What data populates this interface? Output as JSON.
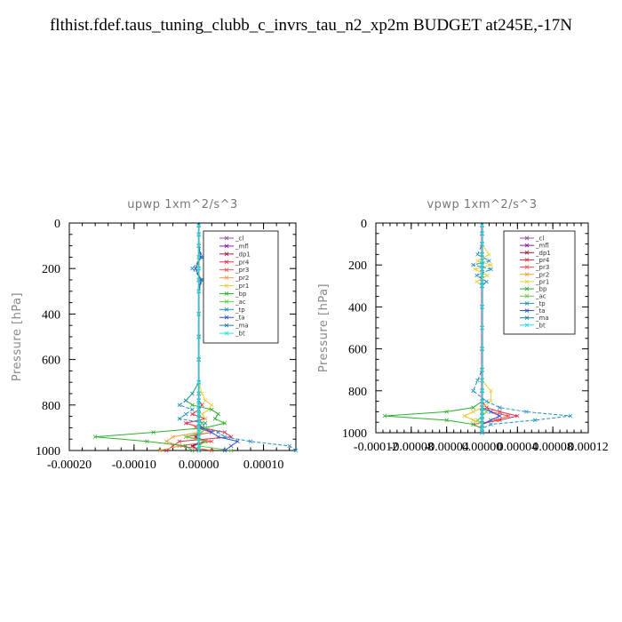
{
  "title": "flthist.fdef.taus_tuning_clubb_c_invrs_tau_n2_xp2m  BUDGET at245E,-17N",
  "legend_entries": [
    "_cl",
    "_mfl",
    "_dp1",
    "_pr4",
    "_pr3",
    "_pr2",
    "_pr1",
    "_bp",
    "_ac",
    "_tp",
    "_ta",
    "_ma",
    "_bt"
  ],
  "series_colors": [
    "#8a5a9e",
    "#7a1fa8",
    "#9c1b4a",
    "#e0304a",
    "#f05050",
    "#f0a040",
    "#e8d040",
    "#30b030",
    "#60d040",
    "#2090c0",
    "#3050d0",
    "#2080a0",
    "#20e0e0"
  ],
  "chart_data": [
    {
      "type": "line",
      "title": "upwp   1xm^2/s^3",
      "ylabel": "Pressure [hPa]",
      "xlim": [
        -0.0002,
        0.00015
      ],
      "ylim": [
        1000,
        0
      ],
      "x_ticks": [
        -0.0002,
        -0.0001,
        0.0,
        0.0001
      ],
      "x_tick_labels": [
        "-0.00020",
        "-0.00010",
        "0.00000",
        "0.00010"
      ],
      "y_ticks": [
        0,
        200,
        400,
        600,
        800,
        1000
      ],
      "y_tick_labels": [
        "0",
        "200",
        "400",
        "600",
        "800",
        "1000"
      ],
      "pressure": [
        10,
        50,
        100,
        150,
        200,
        250,
        300,
        400,
        500,
        600,
        700,
        750,
        780,
        800,
        820,
        840,
        860,
        880,
        900,
        920,
        940,
        960,
        980,
        1000
      ],
      "series": [
        {
          "name": "_cl",
          "values": [
            0,
            0,
            0,
            0,
            0,
            0,
            0,
            0,
            0,
            0,
            0,
            0,
            0,
            0,
            0,
            0,
            0,
            0,
            0,
            0,
            0,
            0,
            0,
            0
          ]
        },
        {
          "name": "_mfl",
          "values": [
            0,
            0,
            0,
            0,
            0,
            0,
            0,
            0,
            0,
            0,
            0,
            0,
            0,
            0,
            0,
            0,
            0,
            0,
            0,
            0,
            0,
            0,
            0,
            0
          ]
        },
        {
          "name": "_dp1",
          "values": [
            0,
            0,
            0,
            0,
            0,
            0,
            0,
            0,
            0,
            0,
            0,
            0,
            0,
            0,
            0,
            0,
            0,
            0,
            0,
            0,
            -5e-06,
            1e-05,
            -1e-05,
            0
          ]
        },
        {
          "name": "_pr4",
          "values": [
            0,
            0,
            0,
            0,
            0,
            0,
            0,
            0,
            0,
            0,
            0,
            0,
            0,
            5e-06,
            0,
            -1e-05,
            1e-05,
            -2e-05,
            5e-06,
            4e-05,
            5e-05,
            -3e-05,
            -4e-05,
            -5e-05
          ]
        },
        {
          "name": "_pr3",
          "values": [
            0,
            0,
            0,
            0,
            0,
            0,
            0,
            0,
            0,
            0,
            0,
            0,
            0,
            0,
            0,
            0,
            0,
            0,
            -5e-06,
            2e-05,
            -2e-05,
            2e-05,
            -3e-05,
            2e-05
          ]
        },
        {
          "name": "_pr2",
          "values": [
            0,
            0,
            0,
            0,
            0,
            0,
            0,
            0,
            0,
            0,
            0,
            0,
            0,
            0,
            0,
            0,
            0,
            0,
            0,
            0,
            -4e-05,
            -5e-05,
            -3e-05,
            -6e-05
          ]
        },
        {
          "name": "_pr1",
          "values": [
            0,
            0,
            0,
            0,
            -5e-06,
            5e-06,
            0,
            0,
            0,
            0,
            0,
            5e-06,
            1e-05,
            2e-05,
            1.5e-05,
            5e-06,
            1e-05,
            5e-06,
            0,
            0,
            0,
            0,
            0,
            0
          ]
        },
        {
          "name": "_bp",
          "values": [
            0,
            0,
            0,
            0,
            0,
            0,
            0,
            0,
            0,
            0,
            0,
            -1e-05,
            -2e-05,
            -1e-05,
            2e-05,
            3e-05,
            2.5e-05,
            4e-05,
            1e-05,
            -7e-05,
            -0.00016,
            -8e-05,
            -2e-05,
            -1e-05
          ]
        },
        {
          "name": "_ac",
          "values": [
            0,
            0,
            0,
            0,
            0,
            0,
            0,
            0,
            0,
            0,
            0,
            0,
            0,
            0,
            0,
            0,
            0,
            5e-06,
            1e-05,
            5e-06,
            -2e-05,
            1e-05,
            0,
            5e-05
          ]
        },
        {
          "name": "_tp",
          "values": [
            0,
            0,
            0,
            5e-06,
            -1e-05,
            5e-06,
            0,
            0,
            0,
            0,
            0,
            -1e-05,
            -2e-05,
            -3e-05,
            -1e-05,
            -2e-05,
            -3e-05,
            1e-05,
            0,
            3e-05,
            4e-05,
            8e-05,
            0.00014,
            0.00015
          ]
        },
        {
          "name": "_ta",
          "values": [
            0,
            0,
            0,
            3e-06,
            -5e-06,
            3e-06,
            0,
            0,
            0,
            0,
            0,
            0,
            0,
            0,
            0,
            0,
            0,
            0,
            5e-06,
            2e-05,
            3e-05,
            6e-05,
            5e-05,
            4e-05
          ]
        },
        {
          "name": "_ma",
          "values": [
            0,
            0,
            0,
            0,
            0,
            0,
            0,
            0,
            0,
            0,
            0,
            0,
            0,
            0,
            0,
            0,
            0,
            0,
            0,
            0,
            0,
            0,
            0,
            0
          ]
        },
        {
          "name": "_bt",
          "values": [
            0,
            0,
            0,
            0,
            0,
            0,
            0,
            0,
            0,
            0,
            0,
            0,
            0,
            0,
            0,
            0,
            0,
            0,
            0,
            0,
            0,
            0,
            0,
            0
          ]
        }
      ]
    },
    {
      "type": "line",
      "title": "vpwp   1xm^2/s^3",
      "ylabel": "Pressure [hPa]",
      "xlim": [
        -0.00012,
        0.00012
      ],
      "ylim": [
        1000,
        0
      ],
      "x_ticks": [
        -0.00012,
        -8e-05,
        -4e-05,
        0.0,
        4e-05,
        8e-05,
        0.00012
      ],
      "x_tick_labels": [
        "-0.00012",
        "-0.00008",
        "-0.00004",
        "0.00000",
        "0.00004",
        "0.00008",
        "0.00012"
      ],
      "y_ticks": [
        0,
        200,
        400,
        600,
        800,
        1000
      ],
      "y_tick_labels": [
        "0",
        "200",
        "400",
        "600",
        "800",
        "1000"
      ],
      "pressure": [
        10,
        50,
        100,
        150,
        180,
        200,
        220,
        250,
        280,
        300,
        400,
        500,
        600,
        700,
        750,
        800,
        850,
        880,
        900,
        920,
        940,
        960,
        980,
        1000
      ],
      "series": [
        {
          "name": "_cl",
          "values": [
            0,
            0,
            0,
            0,
            0,
            0,
            0,
            0,
            0,
            0,
            0,
            0,
            0,
            0,
            0,
            0,
            0,
            0,
            0,
            0,
            0,
            0,
            0,
            0
          ]
        },
        {
          "name": "_mfl",
          "values": [
            0,
            0,
            0,
            0,
            0,
            0,
            0,
            0,
            0,
            0,
            0,
            0,
            0,
            0,
            0,
            0,
            0,
            0,
            0,
            0,
            0,
            0,
            0,
            0
          ]
        },
        {
          "name": "_dp1",
          "values": [
            0,
            0,
            0,
            0,
            0,
            0,
            0,
            0,
            0,
            0,
            0,
            0,
            0,
            0,
            0,
            0,
            0,
            0,
            0,
            0,
            0,
            0,
            0,
            0
          ]
        },
        {
          "name": "_pr4",
          "values": [
            0,
            0,
            0,
            0,
            0,
            0,
            0,
            0,
            0,
            0,
            0,
            0,
            0,
            0,
            0,
            0,
            0,
            5e-06,
            2e-05,
            4e-05,
            2e-05,
            -1e-05,
            0,
            0
          ]
        },
        {
          "name": "_pr3",
          "values": [
            0,
            0,
            0,
            0,
            0,
            0,
            0,
            0,
            0,
            0,
            0,
            0,
            0,
            0,
            0,
            0,
            0,
            5e-06,
            1e-05,
            3e-05,
            1.5e-05,
            0,
            0,
            0
          ]
        },
        {
          "name": "_pr2",
          "values": [
            0,
            0,
            0,
            0,
            0,
            0,
            0,
            0,
            0,
            0,
            0,
            0,
            0,
            0,
            0,
            0,
            0,
            0,
            -1e-05,
            -2e-05,
            -1e-05,
            0,
            0,
            0
          ]
        },
        {
          "name": "_pr1",
          "values": [
            0,
            0,
            0,
            8e-06,
            -5e-06,
            1e-05,
            -8e-06,
            6e-06,
            -6e-06,
            0,
            0,
            0,
            0,
            0,
            0,
            1e-05,
            1e-05,
            0,
            -1e-05,
            -2e-05,
            -1e-05,
            0,
            0,
            0
          ]
        },
        {
          "name": "_bp",
          "values": [
            0,
            0,
            0,
            0,
            0,
            0,
            0,
            0,
            0,
            0,
            0,
            0,
            0,
            0,
            0,
            0,
            0,
            -1e-05,
            -4e-05,
            -0.00011,
            -4e-05,
            -1e-05,
            0,
            0
          ]
        },
        {
          "name": "_ac",
          "values": [
            0,
            0,
            0,
            0,
            0,
            0,
            0,
            0,
            0,
            0,
            0,
            0,
            0,
            0,
            0,
            0,
            0,
            0,
            5e-06,
            0,
            -5e-06,
            0,
            0,
            0
          ]
        },
        {
          "name": "_tp",
          "values": [
            0,
            0,
            0,
            -5e-06,
            8e-06,
            -1e-05,
            1e-05,
            -6e-06,
            5e-06,
            0,
            0,
            0,
            0,
            0,
            -5e-06,
            -1e-05,
            5e-06,
            2e-05,
            5e-05,
            0.0001,
            6e-05,
            1e-05,
            0,
            0
          ]
        },
        {
          "name": "_ta",
          "values": [
            0,
            0,
            0,
            0,
            0,
            0,
            0,
            0,
            0,
            0,
            0,
            0,
            0,
            0,
            0,
            0,
            0,
            0,
            1e-05,
            2e-05,
            1e-05,
            0,
            0,
            0
          ]
        },
        {
          "name": "_ma",
          "values": [
            0,
            0,
            0,
            0,
            0,
            0,
            0,
            0,
            0,
            0,
            0,
            0,
            0,
            0,
            0,
            0,
            0,
            0,
            0,
            0,
            0,
            0,
            0,
            0
          ]
        },
        {
          "name": "_bt",
          "values": [
            0,
            0,
            0,
            0,
            0,
            0,
            0,
            0,
            0,
            0,
            0,
            0,
            0,
            0,
            0,
            0,
            0,
            0,
            0,
            0,
            0,
            0,
            0,
            0
          ]
        }
      ]
    }
  ]
}
